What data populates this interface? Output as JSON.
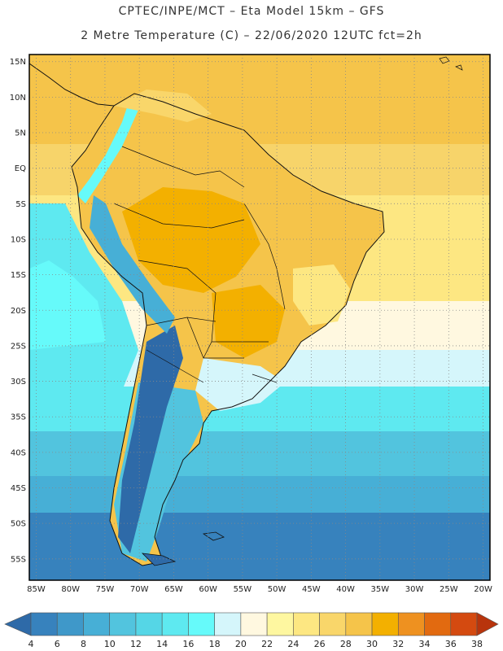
{
  "header": {
    "line1": "CPTEC/INPE/MCT –  Eta Model 15km – GFS",
    "line2": "2 Metre Temperature (C) – 22/06/2020 12UTC fct=2h"
  },
  "axes": {
    "lat_labels": [
      "15N",
      "10N",
      "5N",
      "EQ",
      "5S",
      "10S",
      "15S",
      "20S",
      "25S",
      "30S",
      "35S",
      "40S",
      "45S",
      "50S",
      "55S"
    ],
    "lon_labels": [
      "85W",
      "80W",
      "75W",
      "70W",
      "65W",
      "60W",
      "55W",
      "50W",
      "45W",
      "40W",
      "35W",
      "30W",
      "25W",
      "20W"
    ]
  },
  "colorbar": {
    "labels": [
      "4",
      "6",
      "8",
      "10",
      "12",
      "14",
      "16",
      "18",
      "20",
      "22",
      "24",
      "26",
      "28",
      "30",
      "32",
      "34",
      "36",
      "38"
    ],
    "colors": [
      "#2e6aa8",
      "#3782bd",
      "#3f98c9",
      "#47afd6",
      "#52c4de",
      "#55d6e6",
      "#5ee9f0",
      "#66fafa",
      "#d5f6fb",
      "#fff8e0",
      "#fef7a0",
      "#fde782",
      "#f9d66a",
      "#f5c44a",
      "#f3b000",
      "#ee9120",
      "#e26a10",
      "#d44a10",
      "#b8340c"
    ]
  },
  "map_data": {
    "region": "South America",
    "field": "2 Metre Temperature (C)",
    "lon_range": [
      -86,
      -19
    ],
    "lat_range": [
      -58,
      16
    ]
  }
}
